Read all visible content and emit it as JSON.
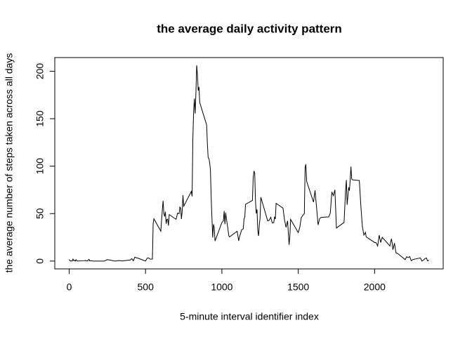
{
  "chart_data": {
    "type": "line",
    "title": "the average daily activity pattern",
    "x_label": "5-minute interval identifier index",
    "y_label": "the average number of steps taken across all days",
    "color": "#000000",
    "grid": false,
    "xlim": [
      -94.2,
      2449.2
    ],
    "ylim": [
      -8.25,
      214.4
    ],
    "xticks": [
      0,
      500,
      1000,
      1500,
      2000
    ],
    "yticks": [
      0,
      50,
      100,
      150,
      200
    ],
    "x": [
      0,
      5,
      10,
      15,
      20,
      25,
      30,
      35,
      40,
      45,
      50,
      55,
      100,
      105,
      110,
      115,
      120,
      125,
      130,
      135,
      140,
      145,
      150,
      155,
      200,
      230,
      250,
      300,
      330,
      345,
      400,
      410,
      420,
      430,
      440,
      450,
      500,
      510,
      520,
      530,
      545,
      550,
      555,
      600,
      610,
      615,
      620,
      625,
      630,
      635,
      640,
      645,
      650,
      655,
      700,
      710,
      720,
      725,
      730,
      735,
      740,
      745,
      750,
      800,
      805,
      810,
      815,
      820,
      825,
      830,
      835,
      840,
      845,
      850,
      855,
      900,
      905,
      910,
      915,
      920,
      925,
      930,
      935,
      940,
      945,
      950,
      955,
      1000,
      1010,
      1015,
      1020,
      1025,
      1030,
      1040,
      1045,
      1050,
      1100,
      1110,
      1115,
      1130,
      1140,
      1145,
      1150,
      1155,
      1200,
      1205,
      1210,
      1215,
      1220,
      1225,
      1230,
      1235,
      1240,
      1245,
      1250,
      1255,
      1300,
      1310,
      1320,
      1330,
      1340,
      1345,
      1350,
      1355,
      1400,
      1410,
      1420,
      1430,
      1440,
      1445,
      1450,
      1500,
      1510,
      1520,
      1530,
      1540,
      1545,
      1550,
      1555,
      1600,
      1610,
      1620,
      1630,
      1640,
      1650,
      1700,
      1710,
      1720,
      1730,
      1740,
      1750,
      1800,
      1810,
      1815,
      1820,
      1825,
      1830,
      1835,
      1840,
      1845,
      1850,
      1855,
      1900,
      1910,
      1920,
      1930,
      1940,
      1945,
      2000,
      2010,
      2020,
      2030,
      2040,
      2050,
      2100,
      2110,
      2115,
      2120,
      2130,
      2140,
      2150,
      2200,
      2210,
      2220,
      2230,
      2240,
      2250,
      2300,
      2310,
      2320,
      2330,
      2340,
      2345,
      2350,
      2355
    ],
    "values": [
      1.7,
      0.3,
      0.1,
      0.2,
      0.1,
      2.1,
      0.5,
      0.9,
      0,
      1.5,
      0.3,
      0.1,
      0.3,
      0.7,
      0.2,
      0.3,
      0,
      1.1,
      1.8,
      0.2,
      0.2,
      0.4,
      0.3,
      0,
      0,
      0,
      1.5,
      0,
      0.5,
      0.1,
      1.2,
      2.6,
      0.3,
      4.1,
      3.5,
      3.1,
      0,
      3.0,
      3.3,
      2.1,
      2.0,
      39.5,
      44.5,
      31.5,
      53.8,
      63.5,
      50,
      47,
      52,
      39.3,
      44,
      44.2,
      37.4,
      49.0,
      44,
      50.5,
      49.9,
      56.9,
      55.7,
      44.3,
      52.3,
      69.5,
      57.8,
      73.4,
      68.2,
      129.4,
      157.5,
      171.2,
      155.4,
      177.3,
      206.2,
      195.9,
      179.6,
      183.4,
      167.0,
      143.5,
      124.0,
      109.1,
      108.1,
      103.7,
      96.0,
      66.2,
      45.2,
      24.8,
      38.8,
      35.0,
      21.1,
      40.6,
      42.4,
      52.7,
      38.9,
      50.8,
      44.3,
      33.4,
      26.8,
      25.5,
      31.4,
      21.3,
      25.5,
      33.0,
      34.0,
      44.5,
      46.4,
      59.8,
      63.9,
      87.6,
      94.8,
      92.8,
      63.4,
      50.2,
      54.5,
      32.4,
      26.5,
      37.7,
      45.1,
      67.3,
      42.3,
      43.0,
      46.2,
      40.0,
      40.6,
      46.8,
      44.2,
      60.8,
      55.8,
      43.6,
      35.5,
      42.4,
      17.1,
      26.1,
      43.9,
      30.0,
      35.5,
      45.9,
      48.1,
      50.0,
      98.7,
      102.1,
      84.0,
      62.1,
      74.5,
      56.4,
      38.0,
      44.7,
      46.0,
      46.6,
      50.6,
      72.9,
      68.9,
      75.1,
      34.8,
      40.7,
      74.7,
      85.3,
      59.3,
      67.8,
      77.7,
      74.2,
      85.3,
      99.5,
      86.6,
      85.6,
      84.9,
      58.0,
      36.3,
      27.4,
      30.2,
      25.5,
      19.6,
      19.3,
      15.9,
      27.3,
      19.6,
      25.0,
      15.9,
      23.5,
      18.9,
      12.0,
      18.9,
      8.7,
      8.1,
      1.6,
      4.6,
      3.7,
      4.7,
      0.3,
      1.6,
      3.3,
      0,
      1.0,
      2.6,
      3.3,
      0.6,
      0.2,
      1.1
    ]
  }
}
